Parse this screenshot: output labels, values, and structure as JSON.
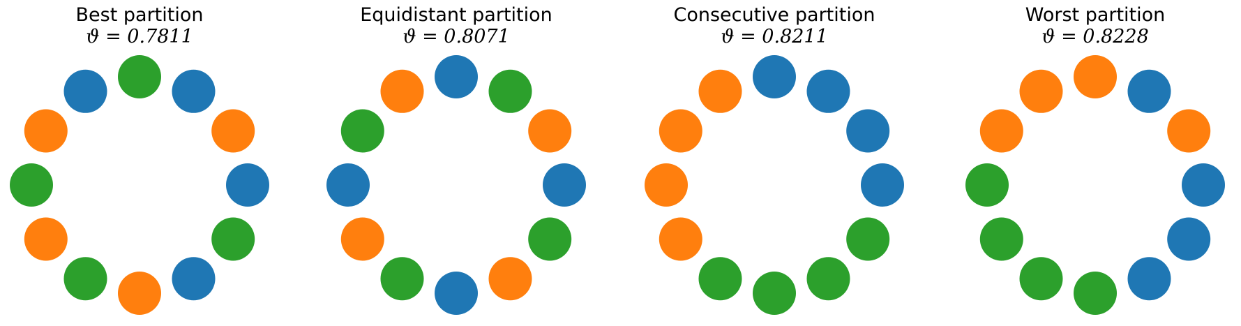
{
  "colors": {
    "blue": "#1f77b4",
    "orange": "#ff7f0e",
    "green": "#2ca02c"
  },
  "panels": [
    {
      "title": "Best partition",
      "theta_label": "ϑ = 0.7811",
      "nodes": [
        "green",
        "blue",
        "orange",
        "blue",
        "green",
        "blue",
        "orange",
        "green",
        "orange",
        "green",
        "orange",
        "blue"
      ]
    },
    {
      "title": "Equidistant partition",
      "theta_label": "ϑ = 0.8071",
      "nodes": [
        "blue",
        "green",
        "orange",
        "blue",
        "green",
        "orange",
        "blue",
        "green",
        "orange",
        "blue",
        "green",
        "orange"
      ]
    },
    {
      "title": "Consecutive partition",
      "theta_label": "ϑ = 0.8211",
      "nodes": [
        "blue",
        "blue",
        "blue",
        "blue",
        "green",
        "green",
        "green",
        "green",
        "orange",
        "orange",
        "orange",
        "orange"
      ]
    },
    {
      "title": "Worst partition",
      "theta_label": "ϑ = 0.8228",
      "nodes": [
        "orange",
        "blue",
        "orange",
        "blue",
        "blue",
        "blue",
        "green",
        "green",
        "green",
        "green",
        "orange",
        "orange"
      ]
    }
  ]
}
